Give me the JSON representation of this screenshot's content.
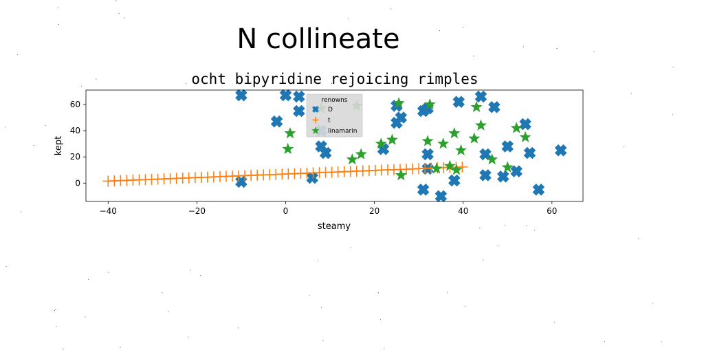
{
  "chart_data": {
    "type": "scatter",
    "suptitle": "N collineate",
    "title": "ocht bipyridine rejoicing rimples",
    "xlabel": "steamy",
    "ylabel": "kept",
    "xlim": [
      -45,
      67
    ],
    "ylim": [
      -14,
      71
    ],
    "xticks": [
      -40,
      -20,
      0,
      20,
      40,
      60
    ],
    "yticks": [
      0,
      20,
      40,
      60
    ],
    "xtick_labels": [
      "−40",
      "−20",
      "0",
      "20",
      "40",
      "60"
    ],
    "ytick_labels": [
      "0",
      "20",
      "40",
      "60"
    ],
    "grid": false,
    "legend": {
      "title": "renowns",
      "placement": "upper-center"
    },
    "series": [
      {
        "name": "D",
        "marker": "X",
        "color": "#1f77b4",
        "points": [
          [
            -10,
            67
          ],
          [
            -10,
            1
          ],
          [
            -2,
            47
          ],
          [
            0,
            67
          ],
          [
            3,
            66
          ],
          [
            3,
            55
          ],
          [
            8,
            40
          ],
          [
            8,
            28
          ],
          [
            9,
            23
          ],
          [
            6,
            4
          ],
          [
            22,
            26
          ],
          [
            25,
            59
          ],
          [
            25,
            46
          ],
          [
            26,
            50
          ],
          [
            31,
            55
          ],
          [
            32,
            57
          ],
          [
            32,
            22
          ],
          [
            32,
            11
          ],
          [
            31,
            -5
          ],
          [
            35,
            -10
          ],
          [
            38,
            2
          ],
          [
            39,
            62
          ],
          [
            44,
            66
          ],
          [
            45,
            22
          ],
          [
            45,
            6
          ],
          [
            47,
            58
          ],
          [
            49,
            5
          ],
          [
            50,
            28
          ],
          [
            52,
            9
          ],
          [
            54,
            45
          ],
          [
            55,
            23
          ],
          [
            57,
            -5
          ],
          [
            62,
            25
          ]
        ]
      },
      {
        "name": "t",
        "marker": "+",
        "color": "#ff7f0e",
        "line": true,
        "points": [
          [
            -40.0,
            1.5
          ],
          [
            -38.6,
            1.7
          ],
          [
            -37.2,
            1.9
          ],
          [
            -35.8,
            2.1
          ],
          [
            -34.4,
            2.3
          ],
          [
            -33.0,
            2.5
          ],
          [
            -31.6,
            2.6
          ],
          [
            -30.2,
            2.8
          ],
          [
            -28.8,
            3.0
          ],
          [
            -27.4,
            3.2
          ],
          [
            -26.0,
            3.4
          ],
          [
            -24.6,
            3.6
          ],
          [
            -23.2,
            3.8
          ],
          [
            -21.8,
            4.0
          ],
          [
            -20.4,
            4.2
          ],
          [
            -19.0,
            4.4
          ],
          [
            -17.6,
            4.5
          ],
          [
            -16.2,
            4.7
          ],
          [
            -14.8,
            4.9
          ],
          [
            -13.4,
            5.1
          ],
          [
            -12.0,
            5.3
          ],
          [
            -10.6,
            5.5
          ],
          [
            -9.2,
            5.7
          ],
          [
            -7.8,
            5.9
          ],
          [
            -6.4,
            6.1
          ],
          [
            -5.0,
            6.3
          ],
          [
            -3.6,
            6.4
          ],
          [
            -2.2,
            6.6
          ],
          [
            -0.8,
            6.8
          ],
          [
            0.6,
            7.0
          ],
          [
            2.0,
            7.2
          ],
          [
            3.4,
            7.4
          ],
          [
            4.8,
            7.6
          ],
          [
            6.2,
            7.8
          ],
          [
            7.6,
            8.0
          ],
          [
            9.0,
            8.2
          ],
          [
            10.4,
            8.3
          ],
          [
            11.8,
            8.5
          ],
          [
            13.2,
            8.7
          ],
          [
            14.6,
            8.9
          ],
          [
            16.0,
            9.1
          ],
          [
            17.4,
            9.3
          ],
          [
            18.8,
            9.5
          ],
          [
            20.2,
            9.7
          ],
          [
            21.6,
            9.9
          ],
          [
            23.0,
            10.1
          ],
          [
            24.4,
            10.2
          ],
          [
            25.8,
            10.4
          ],
          [
            27.2,
            10.6
          ],
          [
            28.6,
            10.8
          ],
          [
            30.0,
            11.0
          ],
          [
            31.4,
            11.2
          ],
          [
            32.8,
            11.4
          ],
          [
            34.2,
            11.6
          ],
          [
            35.6,
            11.8
          ],
          [
            37.0,
            12.0
          ],
          [
            38.4,
            12.1
          ],
          [
            39.8,
            12.3
          ]
        ]
      },
      {
        "name": "linamarin",
        "marker": "*",
        "color": "#2ca02c",
        "points": [
          [
            1,
            38
          ],
          [
            0.5,
            26
          ],
          [
            8,
            57
          ],
          [
            16,
            59
          ],
          [
            15,
            18
          ],
          [
            17,
            22
          ],
          [
            21.5,
            30
          ],
          [
            24,
            33
          ],
          [
            25.5,
            61
          ],
          [
            26,
            6
          ],
          [
            32,
            32
          ],
          [
            32.5,
            60
          ],
          [
            34,
            11
          ],
          [
            35.5,
            30
          ],
          [
            37,
            13
          ],
          [
            38,
            38
          ],
          [
            38.5,
            10
          ],
          [
            39.5,
            25
          ],
          [
            42.5,
            34
          ],
          [
            43,
            58
          ],
          [
            44,
            44
          ],
          [
            46.5,
            18
          ],
          [
            50,
            12
          ],
          [
            52,
            42
          ],
          [
            54,
            35
          ]
        ]
      }
    ]
  }
}
